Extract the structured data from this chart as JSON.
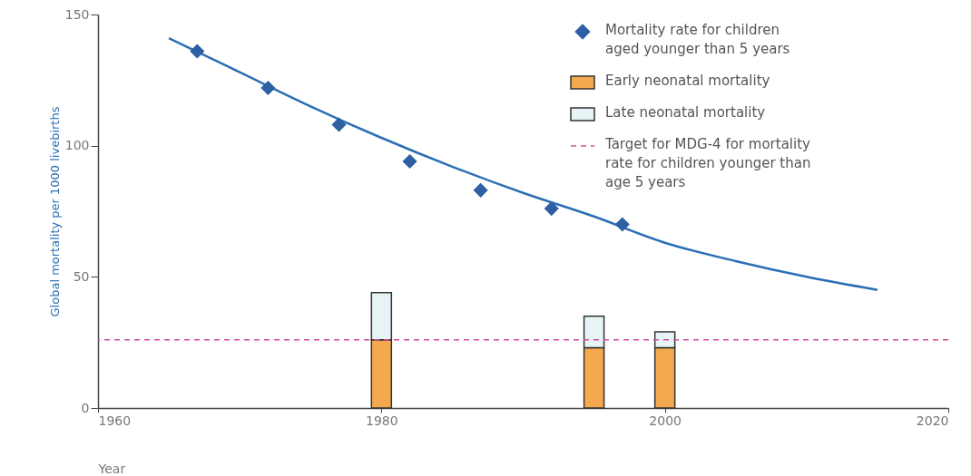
{
  "chart_data": {
    "type": "bar",
    "stacked": true,
    "xlabel": "Year",
    "ylabel": "Global mortality per 1000 livebirths",
    "xlim": [
      1960,
      2020
    ],
    "xticks": [
      1960,
      1980,
      2000,
      2020
    ],
    "ylim": [
      0,
      150
    ],
    "yticks": [
      0,
      50,
      100,
      150
    ],
    "grid": false,
    "legend": "top right",
    "x": [
      1980,
      1995,
      2000
    ],
    "series": [
      {
        "name": "Early neonatal mortality",
        "color": "#f4a94f",
        "values": [
          26,
          23,
          23
        ]
      },
      {
        "name": "Late neonatal mortality",
        "color": "#e6f4f6",
        "values": [
          18,
          12,
          6
        ]
      },
      {
        "type": "line",
        "color": "#2a6fb5",
        "x": [
          1965,
          1970,
          1975,
          1980,
          1985,
          1990,
          1995,
          2000,
          2005,
          2010,
          2015
        ],
        "values": [
          141,
          128,
          115,
          103,
          92,
          82,
          73,
          63,
          56,
          50,
          45
        ]
      },
      {
        "type": "scatter",
        "name": "Mortality rate for children aged younger than 5 years",
        "color": "#2e5fa3",
        "marker": "diamond",
        "x": [
          1967,
          1972,
          1977,
          1982,
          1987,
          1992,
          1997
        ],
        "values": [
          136,
          122,
          108,
          94,
          83,
          76,
          70
        ]
      }
    ],
    "ref_lines": [
      {
        "axis": "y",
        "value": 26,
        "label": "Target for MDG-4 for mortality rate for children younger than age 5 years",
        "color": "#d0509a",
        "line_style": "dashed"
      }
    ]
  }
}
